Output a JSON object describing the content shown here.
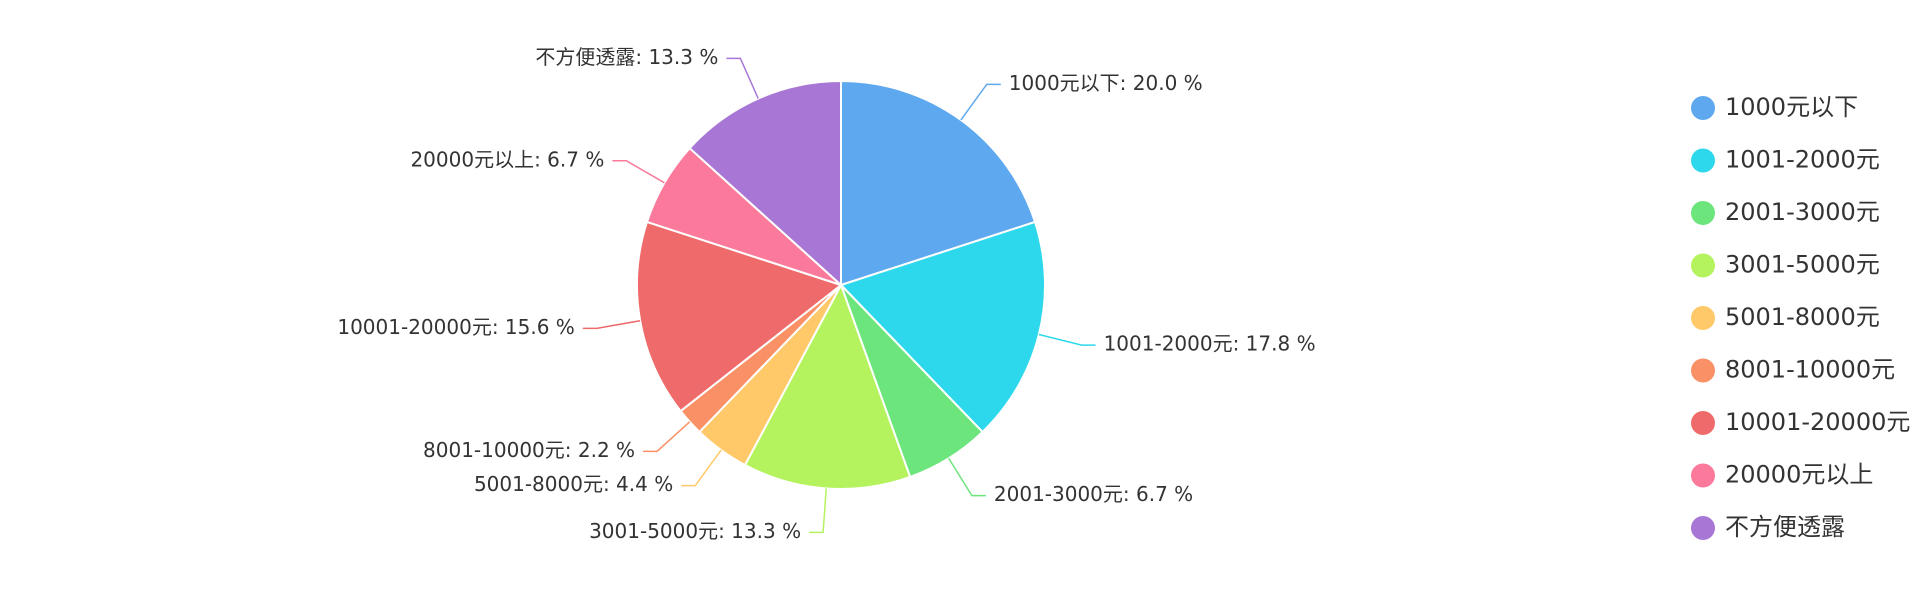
{
  "chart_data": {
    "type": "pie",
    "slices": [
      {
        "label": "1000元以下",
        "value": 20.0,
        "color": "#5DA8EE"
      },
      {
        "label": "1001-2000元",
        "value": 17.8,
        "color": "#2ED8EC"
      },
      {
        "label": "2001-3000元",
        "value": 6.7,
        "color": "#6CE57D"
      },
      {
        "label": "3001-5000元",
        "value": 13.3,
        "color": "#B5F35E"
      },
      {
        "label": "5001-8000元",
        "value": 4.4,
        "color": "#FFC868"
      },
      {
        "label": "8001-10000元",
        "value": 2.2,
        "color": "#FA9166"
      },
      {
        "label": "10001-20000元",
        "value": 15.6,
        "color": "#EF6B6B"
      },
      {
        "label": "20000元以上",
        "value": 6.7,
        "color": "#FB7A9B"
      },
      {
        "label": "不方便透露",
        "value": 13.3,
        "color": "#A877D6"
      }
    ],
    "value_suffix": "%",
    "legend": "right",
    "start_angle": "top",
    "direction": "clockwise"
  }
}
